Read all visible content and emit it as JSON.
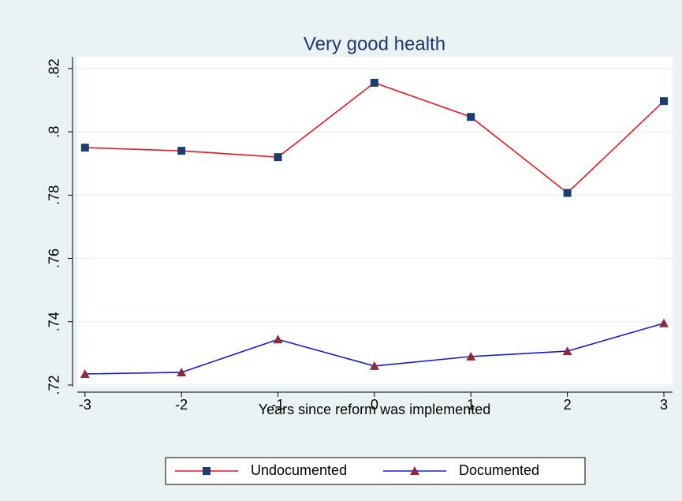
{
  "chart_data": {
    "type": "line",
    "title": "Very good health",
    "x_label": "Years since reform was implemented",
    "x": [
      -3,
      -2,
      -1,
      0,
      1,
      2,
      3
    ],
    "series": [
      {
        "name": "Undocumented",
        "color": "#e8141c",
        "marker_color": "#1a3e6e",
        "marker": "square",
        "values": [
          0.795,
          0.794,
          0.792,
          0.8155,
          0.8047,
          0.7807,
          0.8097
        ]
      },
      {
        "name": "Documented",
        "color": "#1a1ad0",
        "marker_color": "#8b2b3b",
        "marker": "triangle",
        "values": [
          0.7235,
          0.724,
          0.7344,
          0.726,
          0.729,
          0.7307,
          0.7395
        ]
      }
    ],
    "xlim": [
      -3.08,
      3.09
    ],
    "ylim": [
      0.7195,
      0.8237
    ],
    "xticks": [
      -3,
      -2,
      -1,
      0,
      1,
      2,
      3
    ],
    "yticks": [
      {
        "value": 0.72,
        "label": ".72"
      },
      {
        "value": 0.74,
        "label": ".74"
      },
      {
        "value": 0.76,
        "label": ".76"
      },
      {
        "value": 0.78,
        "label": ".78"
      },
      {
        "value": 0.8,
        "label": ".8"
      },
      {
        "value": 0.82,
        "label": ".82"
      }
    ],
    "grid": true,
    "legend": "bottom"
  }
}
